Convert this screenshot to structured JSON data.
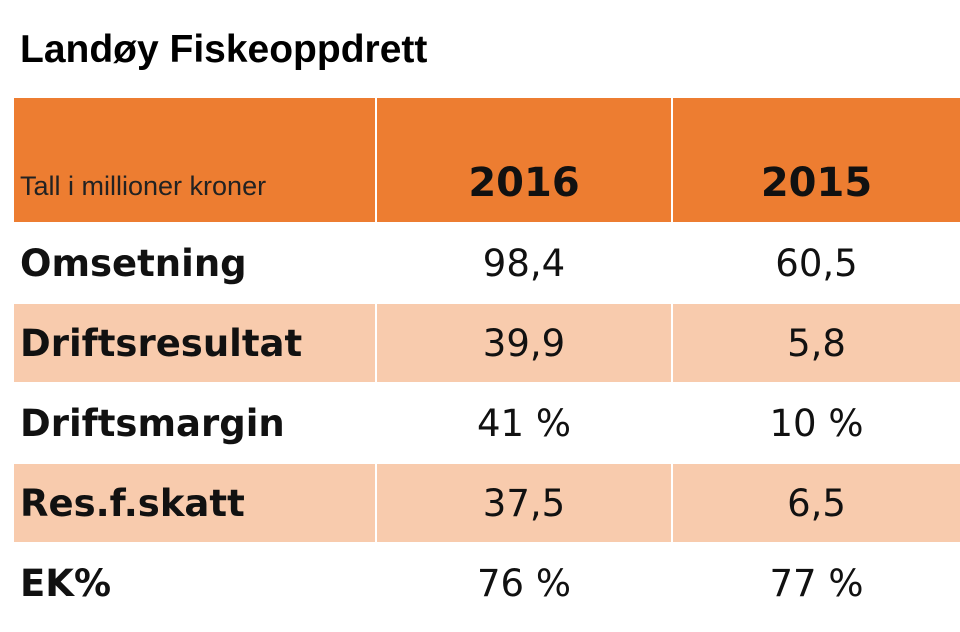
{
  "title": "Landøy Fiskeoppdrett",
  "chart_data": {
    "type": "table",
    "title": "Landøy Fiskeoppdrett",
    "header_note": "Tall i millioner kroner",
    "columns": [
      "2016",
      "2015"
    ],
    "rows": [
      {
        "label": "Omsetning",
        "values": [
          "98,4",
          "60,5"
        ]
      },
      {
        "label": "Driftsresultat",
        "values": [
          "39,9",
          "5,8"
        ]
      },
      {
        "label": "Driftsmargin",
        "values": [
          "41 %",
          "10 %"
        ]
      },
      {
        "label": "Res.f.skatt",
        "values": [
          "37,5",
          "6,5"
        ]
      },
      {
        "label": "EK%",
        "values": [
          "76 %",
          "77 %"
        ]
      }
    ]
  },
  "colors": {
    "header": "#ED7D31",
    "shaded_row": "#F8CBAD",
    "plain_row": "#FFFFFF"
  }
}
